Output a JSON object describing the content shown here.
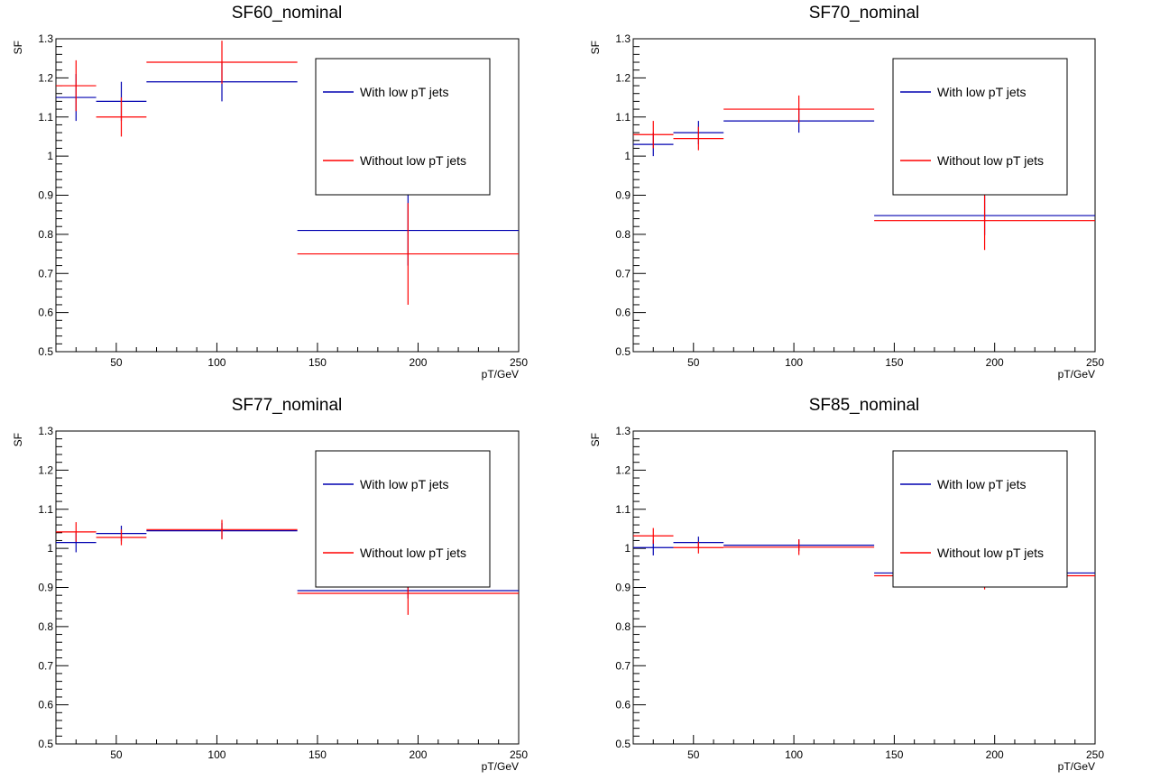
{
  "chart_data": [
    {
      "type": "errorbar",
      "title": "SF60_nominal",
      "xlabel": "pT/GeV",
      "ylabel": "SF",
      "xlim": [
        20,
        250
      ],
      "ylim": [
        0.5,
        1.3
      ],
      "x_major_ticks": [
        50,
        100,
        150,
        200,
        250
      ],
      "y_major_ticks": [
        0.5,
        0.6,
        0.7,
        0.8,
        0.9,
        1,
        1.1,
        1.2,
        1.3
      ],
      "y_tick_labels": [
        "0.5",
        "0.6",
        "0.7",
        "0.8",
        "0.9",
        "1",
        "1.1",
        "1.2",
        "1.3"
      ],
      "legend_position": "top-right",
      "series": [
        {
          "name": "With low pT jets",
          "color": "#0000b0",
          "points": [
            {
              "x": 30,
              "xlow": 20,
              "xhigh": 40,
              "y": 1.15,
              "err": 0.06
            },
            {
              "x": 52.5,
              "xlow": 40,
              "xhigh": 65,
              "y": 1.14,
              "err": 0.05
            },
            {
              "x": 102.5,
              "xlow": 65,
              "xhigh": 140,
              "y": 1.19,
              "err": 0.05
            },
            {
              "x": 195,
              "xlow": 140,
              "xhigh": 250,
              "y": 0.81,
              "err": 0.09
            }
          ]
        },
        {
          "name": "Without low pT jets",
          "color": "#ff0000",
          "points": [
            {
              "x": 30,
              "xlow": 20,
              "xhigh": 40,
              "y": 1.18,
              "err": 0.065
            },
            {
              "x": 52.5,
              "xlow": 40,
              "xhigh": 65,
              "y": 1.1,
              "err": 0.05
            },
            {
              "x": 102.5,
              "xlow": 65,
              "xhigh": 140,
              "y": 1.24,
              "err": 0.055
            },
            {
              "x": 195,
              "xlow": 140,
              "xhigh": 250,
              "y": 0.75,
              "err": 0.13
            }
          ]
        }
      ]
    },
    {
      "type": "errorbar",
      "title": "SF70_nominal",
      "xlabel": "pT/GeV",
      "ylabel": "SF",
      "xlim": [
        20,
        250
      ],
      "ylim": [
        0.5,
        1.3
      ],
      "x_major_ticks": [
        50,
        100,
        150,
        200,
        250
      ],
      "y_major_ticks": [
        0.5,
        0.6,
        0.7,
        0.8,
        0.9,
        1,
        1.1,
        1.2,
        1.3
      ],
      "y_tick_labels": [
        "0.5",
        "0.6",
        "0.7",
        "0.8",
        "0.9",
        "1",
        "1.1",
        "1.2",
        "1.3"
      ],
      "legend_position": "top-right",
      "series": [
        {
          "name": "With low pT jets",
          "color": "#0000b0",
          "points": [
            {
              "x": 30,
              "xlow": 20,
              "xhigh": 40,
              "y": 1.03,
              "err": 0.03
            },
            {
              "x": 52.5,
              "xlow": 40,
              "xhigh": 65,
              "y": 1.06,
              "err": 0.03
            },
            {
              "x": 102.5,
              "xlow": 65,
              "xhigh": 140,
              "y": 1.09,
              "err": 0.03
            },
            {
              "x": 195,
              "xlow": 140,
              "xhigh": 250,
              "y": 0.848,
              "err": 0.05
            }
          ]
        },
        {
          "name": "Without low pT jets",
          "color": "#ff0000",
          "points": [
            {
              "x": 30,
              "xlow": 20,
              "xhigh": 40,
              "y": 1.055,
              "err": 0.035
            },
            {
              "x": 52.5,
              "xlow": 40,
              "xhigh": 65,
              "y": 1.045,
              "err": 0.03
            },
            {
              "x": 102.5,
              "xlow": 65,
              "xhigh": 140,
              "y": 1.12,
              "err": 0.035
            },
            {
              "x": 195,
              "xlow": 140,
              "xhigh": 250,
              "y": 0.835,
              "err": 0.075
            }
          ]
        }
      ]
    },
    {
      "type": "errorbar",
      "title": "SF77_nominal",
      "xlabel": "pT/GeV",
      "ylabel": "SF",
      "xlim": [
        20,
        250
      ],
      "ylim": [
        0.5,
        1.3
      ],
      "x_major_ticks": [
        50,
        100,
        150,
        200,
        250
      ],
      "y_major_ticks": [
        0.5,
        0.6,
        0.7,
        0.8,
        0.9,
        1,
        1.1,
        1.2,
        1.3
      ],
      "y_tick_labels": [
        "0.5",
        "0.6",
        "0.7",
        "0.8",
        "0.9",
        "1",
        "1.1",
        "1.2",
        "1.3"
      ],
      "legend_position": "top-right",
      "series": [
        {
          "name": "With low pT jets",
          "color": "#0000b0",
          "points": [
            {
              "x": 30,
              "xlow": 20,
              "xhigh": 40,
              "y": 1.015,
              "err": 0.025
            },
            {
              "x": 52.5,
              "xlow": 40,
              "xhigh": 65,
              "y": 1.038,
              "err": 0.02
            },
            {
              "x": 102.5,
              "xlow": 65,
              "xhigh": 140,
              "y": 1.045,
              "err": 0.02
            },
            {
              "x": 195,
              "xlow": 140,
              "xhigh": 250,
              "y": 0.892,
              "err": 0.02
            }
          ]
        },
        {
          "name": "Without low pT jets",
          "color": "#ff0000",
          "points": [
            {
              "x": 30,
              "xlow": 20,
              "xhigh": 40,
              "y": 1.042,
              "err": 0.025
            },
            {
              "x": 52.5,
              "xlow": 40,
              "xhigh": 65,
              "y": 1.028,
              "err": 0.02
            },
            {
              "x": 102.5,
              "xlow": 65,
              "xhigh": 140,
              "y": 1.048,
              "err": 0.025
            },
            {
              "x": 195,
              "xlow": 140,
              "xhigh": 250,
              "y": 0.885,
              "err": 0.055
            }
          ]
        }
      ]
    },
    {
      "type": "errorbar",
      "title": "SF85_nominal",
      "xlabel": "pT/GeV",
      "ylabel": "SF",
      "xlim": [
        20,
        250
      ],
      "ylim": [
        0.5,
        1.3
      ],
      "x_major_ticks": [
        50,
        100,
        150,
        200,
        250
      ],
      "y_major_ticks": [
        0.5,
        0.6,
        0.7,
        0.8,
        0.9,
        1,
        1.1,
        1.2,
        1.3
      ],
      "y_tick_labels": [
        "0.5",
        "0.6",
        "0.7",
        "0.8",
        "0.9",
        "1",
        "1.1",
        "1.2",
        "1.3"
      ],
      "legend_position": "top-right",
      "series": [
        {
          "name": "With low pT jets",
          "color": "#0000b0",
          "points": [
            {
              "x": 30,
              "xlow": 20,
              "xhigh": 40,
              "y": 1.002,
              "err": 0.02
            },
            {
              "x": 52.5,
              "xlow": 40,
              "xhigh": 65,
              "y": 1.015,
              "err": 0.015
            },
            {
              "x": 102.5,
              "xlow": 65,
              "xhigh": 140,
              "y": 1.008,
              "err": 0.015
            },
            {
              "x": 195,
              "xlow": 140,
              "xhigh": 250,
              "y": 0.937,
              "err": 0.015
            }
          ]
        },
        {
          "name": "Without low pT jets",
          "color": "#ff0000",
          "points": [
            {
              "x": 30,
              "xlow": 20,
              "xhigh": 40,
              "y": 1.032,
              "err": 0.02
            },
            {
              "x": 52.5,
              "xlow": 40,
              "xhigh": 65,
              "y": 1.002,
              "err": 0.015
            },
            {
              "x": 102.5,
              "xlow": 65,
              "xhigh": 140,
              "y": 1.003,
              "err": 0.02
            },
            {
              "x": 195,
              "xlow": 140,
              "xhigh": 250,
              "y": 0.93,
              "err": 0.035
            }
          ]
        }
      ]
    }
  ]
}
